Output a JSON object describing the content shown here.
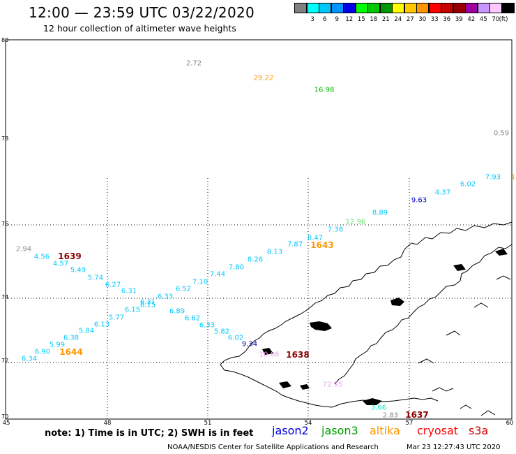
{
  "header": {
    "title": "12:00 — 23:59 UTC 03/22/2020",
    "subtitle": "12 hour collection of altimeter wave heights"
  },
  "legend": {
    "unit": "(ft)",
    "items": [
      {
        "label": "",
        "color": "#808080"
      },
      {
        "label": "3",
        "color": "#00ffff"
      },
      {
        "label": "6",
        "color": "#00c8ff"
      },
      {
        "label": "9",
        "color": "#0096ff"
      },
      {
        "label": "12",
        "color": "#0000e6"
      },
      {
        "label": "15",
        "color": "#00ff00"
      },
      {
        "label": "18",
        "color": "#00c800"
      },
      {
        "label": "21",
        "color": "#009600"
      },
      {
        "label": "24",
        "color": "#ffff00"
      },
      {
        "label": "27",
        "color": "#ffc800"
      },
      {
        "label": "30",
        "color": "#ff9600"
      },
      {
        "label": "33",
        "color": "#ff0000"
      },
      {
        "label": "36",
        "color": "#c80000"
      },
      {
        "label": "39",
        "color": "#960000"
      },
      {
        "label": "42",
        "color": "#a000a0"
      },
      {
        "label": "45",
        "color": "#c896ff"
      },
      {
        "label": "70",
        "color": "#ffc8ff"
      },
      {
        "label": "",
        "color": "#000000"
      }
    ]
  },
  "axes": {
    "lat_labels": [
      "80",
      "78",
      "76",
      "74",
      "72",
      "70"
    ],
    "lon_labels": [
      "45",
      "48",
      "51",
      "54",
      "57",
      "60"
    ]
  },
  "wave_heights": [
    {
      "v": "2.72",
      "c": "#888888"
    },
    {
      "v": "29.22",
      "c": "#ff9600"
    },
    {
      "v": "16.98",
      "c": "#00b400"
    },
    {
      "v": "0.59",
      "c": "#888888"
    },
    {
      "v": "7.93",
      "c": "#00c8ff"
    },
    {
      "v": "1",
      "c": "#ff9600"
    },
    {
      "v": "6.02",
      "c": "#00c8ff"
    },
    {
      "v": "4.37",
      "c": "#00c8ff"
    },
    {
      "v": "9.63",
      "c": "#0000c8"
    },
    {
      "v": "8.89",
      "c": "#00c8ff"
    },
    {
      "v": "12.96",
      "c": "#66e066"
    },
    {
      "v": "7.38",
      "c": "#00c8ff"
    },
    {
      "v": "8.47",
      "c": "#00c8ff"
    },
    {
      "v": "7.87",
      "c": "#00c8ff"
    },
    {
      "v": "8.13",
      "c": "#00c8ff"
    },
    {
      "v": "8.26",
      "c": "#00c8ff"
    },
    {
      "v": "7.80",
      "c": "#00c8ff"
    },
    {
      "v": "7.44",
      "c": "#00c8ff"
    },
    {
      "v": "7.10",
      "c": "#00c8ff"
    },
    {
      "v": "6.52",
      "c": "#00c8ff"
    },
    {
      "v": "6.33",
      "c": "#00c8ff"
    },
    {
      "v": "6.15",
      "c": "#00c8ff"
    },
    {
      "v": "6.31",
      "c": "#00c8ff"
    },
    {
      "v": "6.27",
      "c": "#00c8ff"
    },
    {
      "v": "5.74",
      "c": "#00c8ff"
    },
    {
      "v": "5.49",
      "c": "#00c8ff"
    },
    {
      "v": "4.57",
      "c": "#00c8ff"
    },
    {
      "v": "4.56",
      "c": "#00c8ff"
    },
    {
      "v": "2.94",
      "c": "#888888"
    },
    {
      "v": "6.31",
      "c": "#00c8ff"
    },
    {
      "v": "6.89",
      "c": "#00c8ff"
    },
    {
      "v": "6.62",
      "c": "#00c8ff"
    },
    {
      "v": "6.33",
      "c": "#00c8ff"
    },
    {
      "v": "5.82",
      "c": "#00c8ff"
    },
    {
      "v": "6.02",
      "c": "#00c8ff"
    },
    {
      "v": "9.34",
      "c": "#0000c8"
    },
    {
      "v": "10.08",
      "c": "#f0a0f0"
    },
    {
      "v": "6.15",
      "c": "#00c8ff"
    },
    {
      "v": "5.77",
      "c": "#00c8ff"
    },
    {
      "v": "6.13",
      "c": "#00c8ff"
    },
    {
      "v": "5.84",
      "c": "#00c8ff"
    },
    {
      "v": "6.38",
      "c": "#00c8ff"
    },
    {
      "v": "5.99",
      "c": "#00c8ff"
    },
    {
      "v": "6.90",
      "c": "#00c8ff"
    },
    {
      "v": "6.34",
      "c": "#00c8ff"
    },
    {
      "v": "72.95",
      "c": "#f0a0f0"
    },
    {
      "v": "3.66",
      "c": "#00e0c0"
    },
    {
      "v": "2.83",
      "c": "#888888"
    }
  ],
  "time_labels": [
    {
      "v": "1639",
      "c": "#8b0000"
    },
    {
      "v": "1643",
      "c": "#ff9600"
    },
    {
      "v": "1644",
      "c": "#ff9600"
    },
    {
      "v": "1638",
      "c": "#8b0000"
    },
    {
      "v": "1637",
      "c": "#8b0000"
    }
  ],
  "footer": {
    "note": "note:  1) Time is in UTC;  2) SWH is in feet",
    "satellites": [
      {
        "name": "jason2",
        "color": "#0000dc"
      },
      {
        "name": "jason3",
        "color": "#00a000"
      },
      {
        "name": "altika",
        "color": "#ff9600"
      },
      {
        "name": "cryosat",
        "color": "#ff0000"
      },
      {
        "name": "s3a",
        "color": "#d00000"
      }
    ],
    "credit": "NOAA/NESDIS Center for Satellite Applications and Research",
    "timestamp": "Mar 23 12:27:43 UTC 2020"
  }
}
